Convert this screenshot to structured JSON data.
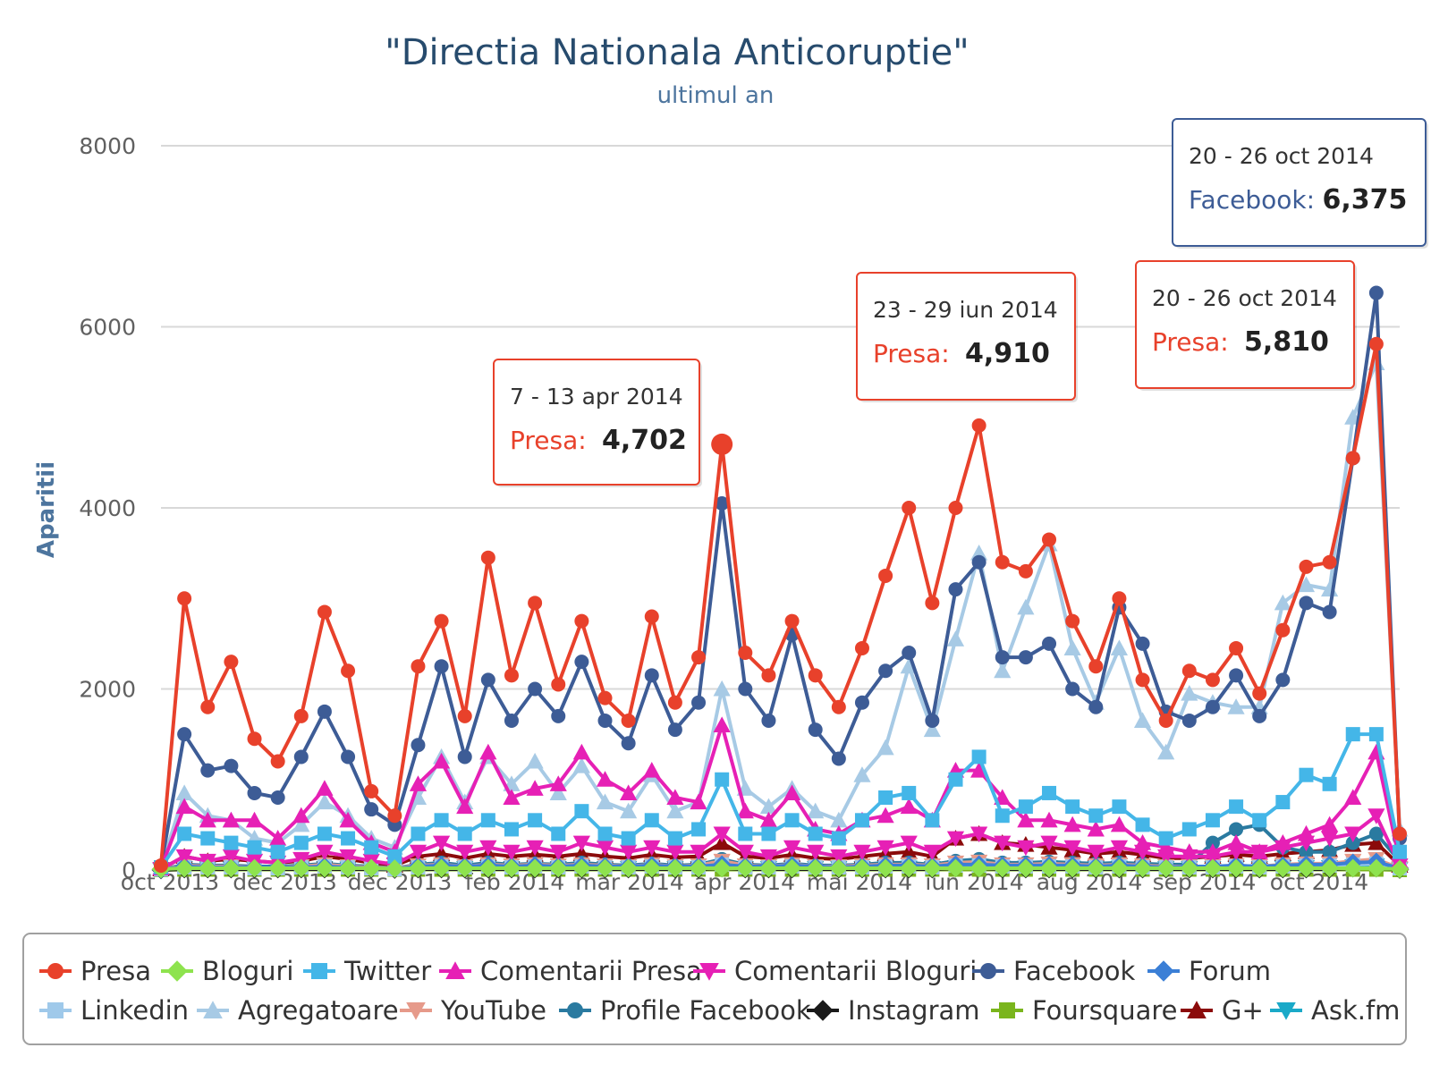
{
  "chart_data": {
    "type": "line",
    "title": "\"Directia Nationala Anticoruptie\"",
    "subtitle": "ultimul an",
    "xlabel": "",
    "ylabel": "Aparitii",
    "ylim": [
      0,
      8000
    ],
    "yticks": [
      "0",
      "2000",
      "4000",
      "6000",
      "8000"
    ],
    "x_tick_labels": [
      "oct 2013",
      "dec 2013",
      "dec 2013",
      "feb 2014",
      "mar 2014",
      "apr 2014",
      "mai 2014",
      "iun 2014",
      "aug 2014",
      "sep 2014",
      "oct 2014"
    ],
    "n_points": 54,
    "series": [
      {
        "name": "Presa",
        "color": "#e8412b",
        "marker": "circle",
        "values": [
          50,
          3000,
          1800,
          2300,
          1450,
          1200,
          1700,
          2850,
          2200,
          870,
          600,
          2250,
          2750,
          1700,
          3450,
          2150,
          2950,
          2050,
          2750,
          1900,
          1650,
          2800,
          1850,
          2350,
          4702,
          2400,
          2150,
          2750,
          2150,
          1800,
          2450,
          3250,
          4000,
          2950,
          4000,
          4910,
          3400,
          3300,
          3650,
          2750,
          2250,
          3000,
          2100,
          1650,
          2200,
          2100,
          2450,
          1950,
          2650,
          3350,
          3400,
          4550,
          5810,
          400
        ]
      },
      {
        "name": "Bloguri",
        "color": "#8ee34e",
        "marker": "diamond",
        "values": [
          10,
          20,
          20,
          20,
          20,
          20,
          20,
          20,
          20,
          20,
          15,
          20,
          20,
          20,
          20,
          20,
          20,
          20,
          20,
          20,
          20,
          20,
          20,
          20,
          20,
          20,
          20,
          20,
          20,
          20,
          20,
          20,
          20,
          20,
          20,
          20,
          20,
          20,
          20,
          20,
          20,
          20,
          20,
          20,
          20,
          20,
          20,
          20,
          20,
          20,
          20,
          20,
          20,
          10
        ]
      },
      {
        "name": "Twitter",
        "color": "#44b6e8",
        "marker": "square",
        "values": [
          30,
          400,
          350,
          300,
          250,
          200,
          300,
          400,
          350,
          250,
          150,
          400,
          550,
          400,
          550,
          450,
          550,
          400,
          650,
          400,
          350,
          550,
          350,
          450,
          1000,
          400,
          400,
          550,
          400,
          350,
          550,
          800,
          850,
          550,
          1000,
          1250,
          600,
          700,
          850,
          700,
          600,
          700,
          500,
          350,
          450,
          550,
          700,
          550,
          750,
          1050,
          950,
          1500,
          1500,
          200
        ]
      },
      {
        "name": "Comentarii Presa",
        "color": "#e620b5",
        "marker": "triangle",
        "values": [
          20,
          700,
          550,
          550,
          550,
          350,
          600,
          900,
          550,
          300,
          200,
          950,
          1200,
          700,
          1300,
          800,
          900,
          950,
          1300,
          1000,
          850,
          1100,
          800,
          750,
          1600,
          650,
          550,
          850,
          450,
          400,
          550,
          600,
          700,
          550,
          1100,
          1100,
          800,
          550,
          550,
          500,
          450,
          500,
          300,
          250,
          200,
          200,
          300,
          200,
          300,
          400,
          500,
          800,
          1300,
          100
        ]
      },
      {
        "name": "Comentarii Bloguri",
        "color": "#e620b5",
        "marker": "triangle-down",
        "values": [
          10,
          150,
          100,
          150,
          100,
          80,
          120,
          200,
          150,
          100,
          60,
          200,
          300,
          200,
          250,
          200,
          250,
          200,
          300,
          250,
          200,
          250,
          200,
          200,
          400,
          200,
          150,
          250,
          200,
          150,
          200,
          250,
          300,
          200,
          350,
          400,
          300,
          250,
          300,
          250,
          200,
          250,
          200,
          150,
          150,
          150,
          200,
          200,
          250,
          300,
          350,
          400,
          600,
          50
        ]
      },
      {
        "name": "Facebook",
        "color": "#3d5c96",
        "marker": "circle",
        "values": [
          40,
          1500,
          1100,
          1150,
          850,
          800,
          1250,
          1750,
          1250,
          670,
          500,
          1380,
          2250,
          1250,
          2100,
          1650,
          2000,
          1700,
          2300,
          1650,
          1400,
          2150,
          1550,
          1850,
          4050,
          2000,
          1650,
          2600,
          1550,
          1230,
          1850,
          2200,
          2400,
          1650,
          3100,
          3400,
          2350,
          2350,
          2500,
          2000,
          1800,
          2900,
          2500,
          1750,
          1650,
          1800,
          2150,
          1700,
          2100,
          2950,
          2850,
          4550,
          6375,
          350
        ]
      },
      {
        "name": "Forum",
        "color": "#3b7fd6",
        "marker": "diamond",
        "values": [
          5,
          40,
          30,
          30,
          30,
          30,
          30,
          40,
          30,
          20,
          15,
          40,
          50,
          40,
          50,
          40,
          50,
          40,
          50,
          40,
          40,
          50,
          40,
          40,
          60,
          40,
          40,
          50,
          40,
          30,
          40,
          50,
          50,
          40,
          60,
          60,
          50,
          50,
          50,
          50,
          40,
          50,
          40,
          30,
          40,
          40,
          50,
          40,
          50,
          60,
          60,
          80,
          90,
          20
        ]
      },
      {
        "name": "Linkedin",
        "color": "#9fc9ea",
        "marker": "square",
        "values": [
          5,
          30,
          30,
          30,
          20,
          20,
          30,
          40,
          30,
          20,
          10,
          30,
          40,
          30,
          40,
          30,
          40,
          30,
          40,
          30,
          30,
          40,
          30,
          30,
          60,
          30,
          30,
          40,
          30,
          30,
          30,
          40,
          40,
          30,
          50,
          50,
          40,
          40,
          40,
          40,
          30,
          40,
          30,
          30,
          30,
          30,
          40,
          30,
          40,
          50,
          50,
          60,
          70,
          20
        ]
      },
      {
        "name": "Agregatoare",
        "color": "#a7cae5",
        "marker": "triangle",
        "values": [
          30,
          850,
          600,
          550,
          350,
          300,
          500,
          750,
          600,
          350,
          250,
          800,
          1250,
          750,
          1250,
          950,
          1200,
          850,
          1150,
          750,
          650,
          1050,
          650,
          750,
          2000,
          900,
          700,
          900,
          650,
          550,
          1050,
          1350,
          2250,
          1550,
          2550,
          3500,
          2200,
          2900,
          3600,
          2450,
          1850,
          2450,
          1650,
          1300,
          1950,
          1850,
          1800,
          1800,
          2950,
          3150,
          3100,
          5000,
          5600,
          450
        ]
      },
      {
        "name": "YouTube",
        "color": "#e69a8a",
        "marker": "triangle-down",
        "values": [
          5,
          50,
          40,
          40,
          30,
          30,
          40,
          60,
          40,
          30,
          20,
          50,
          60,
          40,
          60,
          50,
          60,
          50,
          60,
          50,
          40,
          60,
          40,
          50,
          100,
          50,
          40,
          60,
          40,
          40,
          50,
          60,
          60,
          50,
          80,
          90,
          60,
          60,
          70,
          60,
          50,
          60,
          50,
          40,
          40,
          40,
          50,
          40,
          60,
          70,
          70,
          100,
          120,
          20
        ]
      },
      {
        "name": "Profile Facebook",
        "color": "#2a7aa0",
        "marker": "circle",
        "values": [
          5,
          60,
          50,
          50,
          40,
          40,
          50,
          70,
          50,
          40,
          20,
          60,
          80,
          50,
          80,
          60,
          70,
          60,
          80,
          60,
          50,
          70,
          50,
          60,
          120,
          60,
          50,
          70,
          50,
          50,
          60,
          80,
          80,
          60,
          100,
          120,
          80,
          80,
          90,
          80,
          70,
          80,
          70,
          60,
          60,
          300,
          450,
          500,
          250,
          200,
          200,
          300,
          400,
          100
        ]
      },
      {
        "name": "Instagram",
        "color": "#1a1a1a",
        "marker": "diamond",
        "values": [
          0,
          10,
          10,
          10,
          10,
          10,
          10,
          10,
          10,
          10,
          5,
          10,
          10,
          10,
          10,
          10,
          10,
          10,
          10,
          10,
          10,
          10,
          10,
          10,
          20,
          10,
          10,
          10,
          10,
          10,
          10,
          10,
          10,
          10,
          20,
          20,
          10,
          10,
          10,
          10,
          10,
          10,
          10,
          10,
          10,
          10,
          10,
          10,
          10,
          10,
          10,
          20,
          20,
          5
        ]
      },
      {
        "name": "Foursquare",
        "color": "#7ab51d",
        "marker": "square",
        "values": [
          0,
          5,
          5,
          5,
          5,
          5,
          5,
          5,
          5,
          5,
          5,
          5,
          5,
          5,
          5,
          5,
          5,
          5,
          5,
          5,
          5,
          5,
          5,
          5,
          5,
          5,
          5,
          5,
          5,
          5,
          5,
          5,
          5,
          5,
          5,
          5,
          5,
          5,
          5,
          5,
          5,
          5,
          5,
          5,
          5,
          5,
          5,
          5,
          5,
          5,
          5,
          5,
          5,
          0
        ]
      },
      {
        "name": "G+",
        "color": "#8b0a0a",
        "marker": "triangle",
        "values": [
          10,
          150,
          100,
          120,
          100,
          80,
          100,
          150,
          120,
          80,
          50,
          150,
          180,
          130,
          180,
          150,
          170,
          150,
          180,
          150,
          130,
          170,
          140,
          150,
          300,
          150,
          130,
          170,
          130,
          120,
          150,
          180,
          200,
          150,
          350,
          400,
          300,
          280,
          250,
          220,
          180,
          200,
          170,
          130,
          130,
          150,
          170,
          150,
          180,
          200,
          220,
          280,
          300,
          50
        ]
      },
      {
        "name": "Ask.fm",
        "color": "#1aa9c8",
        "marker": "triangle-down",
        "values": [
          0,
          20,
          15,
          15,
          15,
          10,
          15,
          20,
          15,
          10,
          10,
          20,
          25,
          20,
          25,
          20,
          25,
          20,
          25,
          20,
          20,
          25,
          20,
          20,
          40,
          20,
          20,
          25,
          20,
          20,
          20,
          25,
          25,
          20,
          30,
          35,
          25,
          25,
          30,
          25,
          20,
          25,
          20,
          20,
          20,
          20,
          25,
          20,
          25,
          30,
          30,
          40,
          50,
          10
        ]
      }
    ],
    "tooltips": [
      {
        "date": "7 - 13 apr 2014",
        "series": "Presa",
        "value": "4,702",
        "index": 24
      },
      {
        "date": "23 - 29 iun 2014",
        "series": "Presa",
        "value": "4,910",
        "index": 35
      },
      {
        "date": "20 - 26 oct 2014",
        "series": "Presa",
        "value": "5,810",
        "index": 52
      },
      {
        "date": "20 - 26 oct 2014",
        "series": "Facebook",
        "value": "6,375",
        "index": 52
      }
    ],
    "legend_position": "bottom"
  },
  "colors": {
    "tooltip_presa_border": "#e8412b",
    "tooltip_facebook_border": "#3d5c96",
    "title": "#274b6d"
  }
}
